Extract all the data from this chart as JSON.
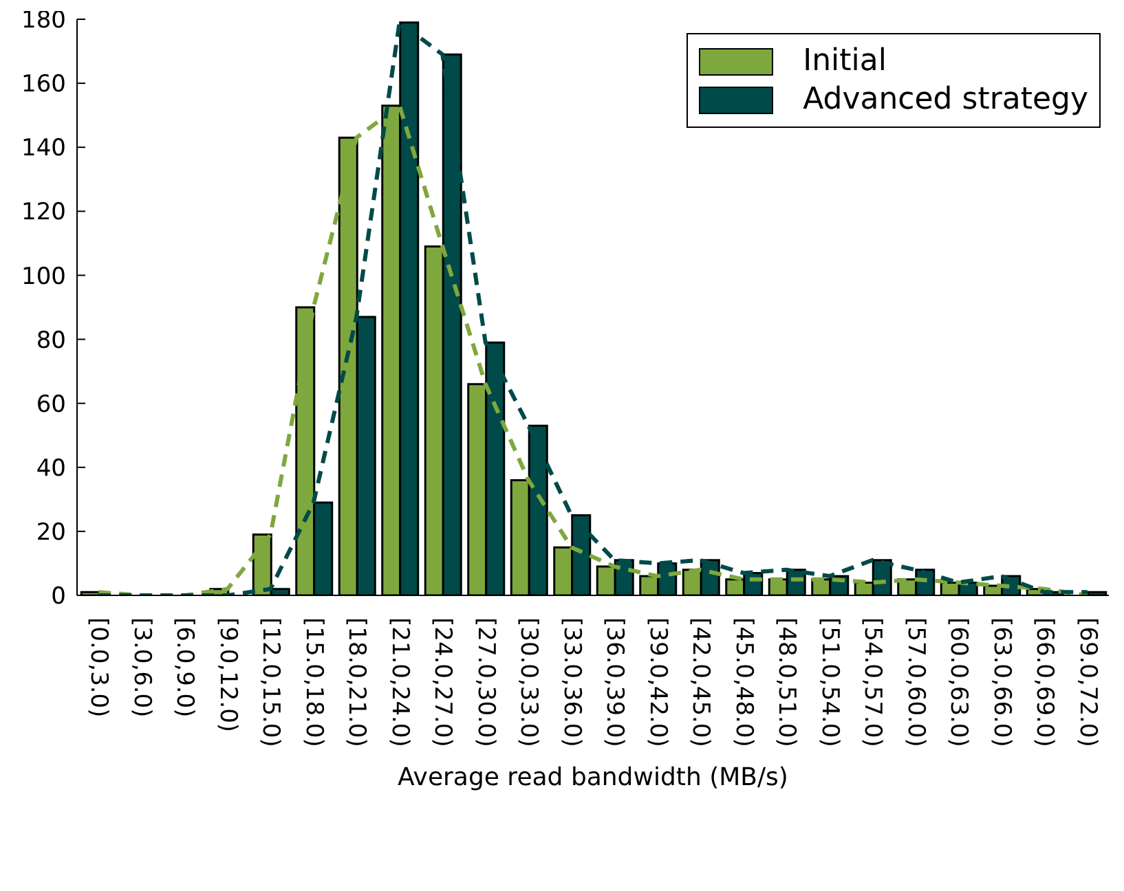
{
  "chart_data": {
    "type": "bar",
    "xlabel": "Average read bandwidth (MB/s)",
    "categories": [
      "[0.0,3.0)",
      "[3.0,6.0)",
      "[6.0,9.0)",
      "[9.0,12.0)",
      "[12.0,15.0)",
      "[15.0,18.0)",
      "[18.0,21.0)",
      "[21.0,24.0)",
      "[24.0,27.0)",
      "[27.0,30.0)",
      "[30.0,33.0)",
      "[33.0,36.0)",
      "[36.0,39.0)",
      "[39.0,42.0)",
      "[42.0,45.0)",
      "[45.0,48.0)",
      "[48.0,51.0)",
      "[51.0,54.0)",
      "[54.0,57.0)",
      "[57.0,60.0)",
      "[60.0,63.0)",
      "[63.0,66.0)",
      "[66.0,69.0)",
      "[69.0,72.0)"
    ],
    "series": [
      {
        "name": "Initial",
        "color": "#7ea83d",
        "values": [
          1,
          0,
          0,
          2,
          19,
          90,
          143,
          153,
          109,
          66,
          36,
          15,
          9,
          6,
          8,
          5,
          5,
          5,
          4,
          5,
          4,
          3,
          2,
          0
        ]
      },
      {
        "name": "Advanced strategy",
        "color": "#004a4a",
        "values": [
          0,
          0,
          0,
          0,
          2,
          29,
          87,
          179,
          169,
          79,
          53,
          25,
          11,
          10,
          11,
          7,
          8,
          6,
          11,
          8,
          4,
          6,
          1,
          1
        ]
      },
      {
        "type": "line",
        "color": "#7ea83d",
        "line_style": "dashed",
        "values": [
          1,
          0,
          0,
          2,
          19,
          90,
          143,
          153,
          109,
          66,
          36,
          15,
          9,
          6,
          8,
          5,
          5,
          5,
          4,
          5,
          4,
          3,
          2,
          0
        ]
      },
      {
        "type": "line",
        "color": "#004a4a",
        "line_style": "dashed",
        "values": [
          0,
          0,
          0,
          0,
          2,
          29,
          87,
          179,
          169,
          79,
          53,
          25,
          11,
          10,
          11,
          7,
          8,
          6,
          11,
          8,
          4,
          6,
          1,
          1
        ]
      }
    ],
    "ylim": [
      0,
      180
    ],
    "yticks": [
      0,
      20,
      40,
      60,
      80,
      100,
      120,
      140,
      160,
      180
    ],
    "grid": false,
    "legend": "top right"
  }
}
